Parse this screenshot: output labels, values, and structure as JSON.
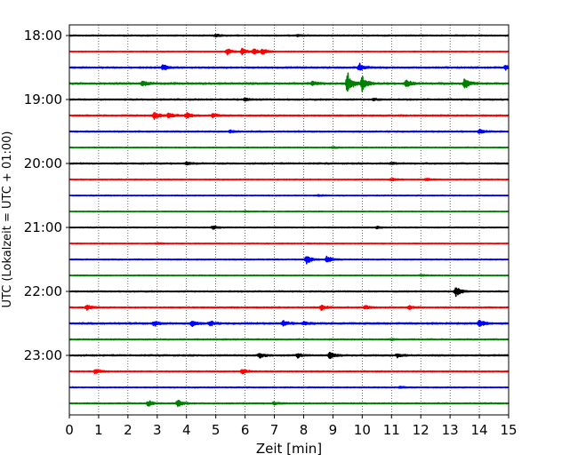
{
  "chart_data": {
    "type": "line",
    "title": "",
    "xlabel": "Zeit  [min]",
    "ylabel": "UTC (Lokalzeit = UTC + 01:00)",
    "xlim": [
      0,
      15
    ],
    "x_ticks": [
      "0",
      "1",
      "2",
      "3",
      "4",
      "5",
      "6",
      "7",
      "8",
      "9",
      "10",
      "11",
      "12",
      "13",
      "14",
      "15"
    ],
    "y_ticks": [
      "18:00",
      "19:00",
      "20:00",
      "21:00",
      "22:00",
      "23:00"
    ],
    "grid": "vertical dotted",
    "trace_minutes": 15,
    "series_colors": [
      "#000000",
      "#ff0000",
      "#0000ff",
      "#008000"
    ],
    "traces": [
      {
        "start": "18:00",
        "color": "#000000",
        "noise": 0.45,
        "events": [
          {
            "t": 5.0,
            "a": 1.2
          },
          {
            "t": 7.8,
            "a": 0.8
          }
        ]
      },
      {
        "start": "18:15",
        "color": "#ff0000",
        "noise": 0.3,
        "events": [
          {
            "t": 5.4,
            "a": 3.5
          },
          {
            "t": 5.9,
            "a": 3.5
          },
          {
            "t": 6.3,
            "a": 3.0
          },
          {
            "t": 6.6,
            "a": 3.0
          }
        ]
      },
      {
        "start": "18:30",
        "color": "#0000ff",
        "noise": 0.55,
        "events": [
          {
            "t": 3.2,
            "a": 3.2
          },
          {
            "t": 9.9,
            "a": 4.5
          },
          {
            "t": 14.9,
            "a": 2.5
          }
        ]
      },
      {
        "start": "18:45",
        "color": "#008000",
        "noise": 0.7,
        "events": [
          {
            "t": 2.5,
            "a": 2.5
          },
          {
            "t": 8.3,
            "a": 2.0
          },
          {
            "t": 9.5,
            "a": 13.0
          },
          {
            "t": 10.0,
            "a": 9.0
          },
          {
            "t": 11.5,
            "a": 5.0
          },
          {
            "t": 13.5,
            "a": 6.0
          }
        ]
      },
      {
        "start": "19:00",
        "color": "#000000",
        "noise": 0.5,
        "events": [
          {
            "t": 6.0,
            "a": 1.3
          },
          {
            "t": 10.4,
            "a": 1.0
          }
        ]
      },
      {
        "start": "19:15",
        "color": "#ff0000",
        "noise": 0.5,
        "events": [
          {
            "t": 2.9,
            "a": 4.5
          },
          {
            "t": 3.4,
            "a": 3.2
          },
          {
            "t": 4.0,
            "a": 3.0
          },
          {
            "t": 4.9,
            "a": 2.2
          }
        ]
      },
      {
        "start": "19:30",
        "color": "#0000ff",
        "noise": 0.45,
        "events": [
          {
            "t": 5.5,
            "a": 1.3
          },
          {
            "t": 14.0,
            "a": 2.2
          }
        ]
      },
      {
        "start": "19:45",
        "color": "#008000",
        "noise": 0.35,
        "events": [
          {
            "t": 9.0,
            "a": 0.8
          }
        ]
      },
      {
        "start": "20:00",
        "color": "#000000",
        "noise": 0.5,
        "events": [
          {
            "t": 4.0,
            "a": 1.3
          },
          {
            "t": 11.0,
            "a": 1.1
          }
        ]
      },
      {
        "start": "20:15",
        "color": "#ff0000",
        "noise": 0.35,
        "events": [
          {
            "t": 11.0,
            "a": 1.6
          },
          {
            "t": 12.2,
            "a": 1.2
          }
        ]
      },
      {
        "start": "20:30",
        "color": "#0000ff",
        "noise": 0.3,
        "events": [
          {
            "t": 8.5,
            "a": 0.7
          }
        ]
      },
      {
        "start": "20:45",
        "color": "#008000",
        "noise": 0.3,
        "events": [
          {
            "t": 6.0,
            "a": 0.7
          }
        ]
      },
      {
        "start": "21:00",
        "color": "#000000",
        "noise": 0.35,
        "events": [
          {
            "t": 4.9,
            "a": 1.6
          },
          {
            "t": 10.5,
            "a": 1.0
          }
        ]
      },
      {
        "start": "21:15",
        "color": "#ff0000",
        "noise": 0.3,
        "events": [
          {
            "t": 3.0,
            "a": 0.7
          }
        ]
      },
      {
        "start": "21:30",
        "color": "#0000ff",
        "noise": 0.35,
        "events": [
          {
            "t": 8.1,
            "a": 5.5
          },
          {
            "t": 8.8,
            "a": 4.0
          }
        ]
      },
      {
        "start": "21:45",
        "color": "#008000",
        "noise": 0.35,
        "events": [
          {
            "t": 12.0,
            "a": 0.8
          }
        ]
      },
      {
        "start": "22:00",
        "color": "#000000",
        "noise": 0.45,
        "events": [
          {
            "t": 13.2,
            "a": 5.5
          }
        ]
      },
      {
        "start": "22:15",
        "color": "#ff0000",
        "noise": 0.45,
        "events": [
          {
            "t": 0.6,
            "a": 3.0
          },
          {
            "t": 8.6,
            "a": 3.0
          },
          {
            "t": 10.1,
            "a": 2.0
          },
          {
            "t": 11.6,
            "a": 2.0
          }
        ]
      },
      {
        "start": "22:30",
        "color": "#0000ff",
        "noise": 0.6,
        "events": [
          {
            "t": 2.9,
            "a": 3.0
          },
          {
            "t": 4.2,
            "a": 3.0
          },
          {
            "t": 4.8,
            "a": 3.0
          },
          {
            "t": 7.3,
            "a": 3.0
          },
          {
            "t": 8.0,
            "a": 2.0
          },
          {
            "t": 14.0,
            "a": 4.5
          }
        ]
      },
      {
        "start": "22:45",
        "color": "#008000",
        "noise": 0.45,
        "events": [
          {
            "t": 11.0,
            "a": 0.8
          }
        ]
      },
      {
        "start": "23:00",
        "color": "#000000",
        "noise": 0.55,
        "events": [
          {
            "t": 6.5,
            "a": 2.5
          },
          {
            "t": 7.8,
            "a": 2.5
          },
          {
            "t": 8.9,
            "a": 4.0
          },
          {
            "t": 11.2,
            "a": 2.0
          }
        ]
      },
      {
        "start": "23:15",
        "color": "#ff0000",
        "noise": 0.4,
        "events": [
          {
            "t": 0.9,
            "a": 3.5
          },
          {
            "t": 5.9,
            "a": 3.0
          }
        ]
      },
      {
        "start": "23:30",
        "color": "#0000ff",
        "noise": 0.35,
        "events": [
          {
            "t": 11.3,
            "a": 1.0
          }
        ]
      },
      {
        "start": "23:45",
        "color": "#008000",
        "noise": 0.45,
        "events": [
          {
            "t": 2.7,
            "a": 3.0
          },
          {
            "t": 3.7,
            "a": 4.0
          },
          {
            "t": 7.0,
            "a": 1.5
          }
        ]
      }
    ]
  }
}
